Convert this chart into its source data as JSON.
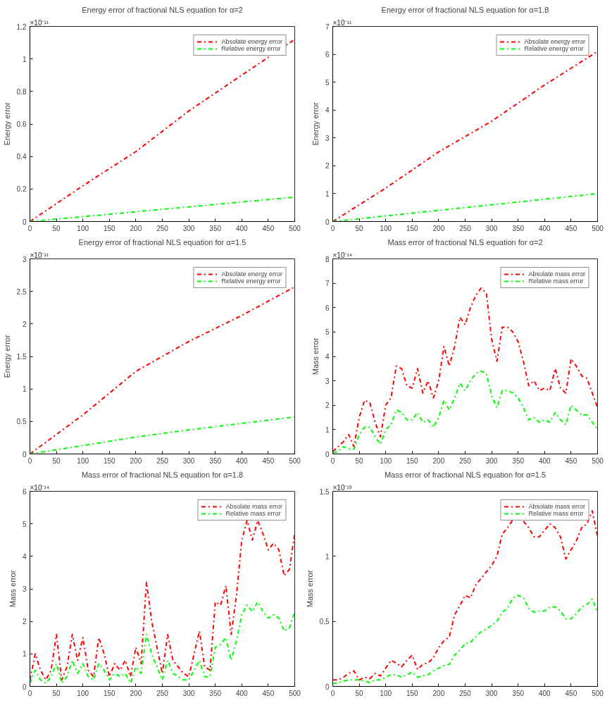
{
  "chart_data": [
    {
      "type": "line",
      "title": "Energy error of fractional NLS equation for α=2",
      "ylabel": "Energy error",
      "annotations": [
        "×10⁻¹¹"
      ],
      "x": [
        0,
        100,
        200,
        300,
        400,
        500
      ],
      "xlim": [
        0,
        500
      ],
      "xticks": [
        0,
        50,
        100,
        150,
        200,
        250,
        300,
        350,
        400,
        450,
        500
      ],
      "ylim": [
        0,
        1.2
      ],
      "yticks": [
        0,
        0.2,
        0.4,
        0.6,
        0.8,
        1,
        1.2
      ],
      "grid": false,
      "legend": "top right",
      "line_style": "dashdot",
      "marker": "none",
      "series": [
        {
          "name": "Absolate energy error",
          "color": "#ff0000",
          "values": [
            0,
            0.22,
            0.43,
            0.68,
            0.9,
            1.12
          ]
        },
        {
          "name": "Relative energy error",
          "color": "#00ff00",
          "values": [
            0,
            0.03,
            0.06,
            0.09,
            0.12,
            0.15
          ]
        }
      ]
    },
    {
      "type": "line",
      "title": "Energy error of fractional NLS equation for α=1.8",
      "ylabel": "Energy error",
      "annotations": [
        "×10⁻¹¹"
      ],
      "x": [
        0,
        100,
        200,
        300,
        400,
        500
      ],
      "xlim": [
        0,
        500
      ],
      "xticks": [
        0,
        50,
        100,
        150,
        200,
        250,
        300,
        350,
        400,
        450,
        500
      ],
      "ylim": [
        0,
        7
      ],
      "yticks": [
        0,
        1,
        2,
        3,
        4,
        5,
        6,
        7
      ],
      "grid": false,
      "legend": "top right",
      "line_style": "dashdot",
      "marker": "none",
      "series": [
        {
          "name": "Absolate energy error",
          "color": "#ff0000",
          "values": [
            0,
            1.2,
            2.5,
            3.6,
            4.9,
            6.1
          ]
        },
        {
          "name": "Relative energy error",
          "color": "#00ff00",
          "values": [
            0,
            0.2,
            0.4,
            0.6,
            0.8,
            1.0
          ]
        }
      ]
    },
    {
      "type": "line",
      "title": "Energy error of fractional NLS equation for α=1.5",
      "ylabel": "Energy error",
      "annotations": [
        "×10⁻¹¹"
      ],
      "x": [
        0,
        100,
        200,
        300,
        400,
        500
      ],
      "xlim": [
        0,
        500
      ],
      "xticks": [
        0,
        50,
        100,
        150,
        200,
        250,
        300,
        350,
        400,
        450,
        500
      ],
      "ylim": [
        0,
        3
      ],
      "yticks": [
        0,
        0.5,
        1,
        1.5,
        2,
        2.5,
        3
      ],
      "grid": false,
      "legend": "top right",
      "line_style": "dashdot",
      "marker": "none",
      "series": [
        {
          "name": "Absolate energy error",
          "color": "#ff0000",
          "values": [
            0,
            0.6,
            1.27,
            1.73,
            2.13,
            2.57
          ]
        },
        {
          "name": "Relative energy error",
          "color": "#00ff00",
          "values": [
            0,
            0.13,
            0.26,
            0.37,
            0.47,
            0.57
          ]
        }
      ]
    },
    {
      "type": "line",
      "title": "Mass error of fractional NLS equation for α=2",
      "ylabel": "Mass error",
      "annotations": [
        "×10⁻¹⁴"
      ],
      "x": [
        0,
        10,
        20,
        30,
        40,
        50,
        60,
        70,
        80,
        90,
        100,
        110,
        120,
        130,
        140,
        150,
        160,
        170,
        180,
        190,
        200,
        210,
        220,
        230,
        240,
        250,
        260,
        270,
        280,
        290,
        300,
        310,
        320,
        330,
        340,
        350,
        360,
        370,
        380,
        390,
        400,
        410,
        420,
        430,
        440,
        450,
        460,
        470,
        480,
        490,
        500
      ],
      "xlim": [
        0,
        500
      ],
      "xticks": [
        0,
        50,
        100,
        150,
        200,
        250,
        300,
        350,
        400,
        450,
        500
      ],
      "ylim": [
        0,
        8
      ],
      "yticks": [
        0,
        1,
        2,
        3,
        4,
        5,
        6,
        7,
        8
      ],
      "grid": false,
      "legend": "top right",
      "line_style": "dashdot",
      "marker": "none",
      "series": [
        {
          "name": "Absolate mass error",
          "color": "#ff0000",
          "values": [
            0.1,
            0.3,
            0.5,
            0.8,
            0.3,
            1.5,
            2.2,
            2.1,
            1.3,
            0.7,
            2.0,
            2.3,
            3.6,
            3.5,
            2.8,
            2.7,
            3.5,
            2.5,
            3.0,
            2.3,
            3.0,
            4.4,
            3.6,
            4.4,
            5.6,
            5.3,
            6.0,
            6.5,
            6.8,
            6.6,
            4.7,
            3.8,
            5.2,
            5.2,
            5.0,
            4.6,
            3.8,
            2.8,
            3.0,
            2.6,
            2.7,
            2.6,
            3.5,
            2.7,
            2.5,
            3.9,
            3.6,
            3.2,
            3.1,
            2.5,
            1.9
          ]
        },
        {
          "name": "Relative mass error",
          "color": "#00ff00",
          "values": [
            0.05,
            0.1,
            0.3,
            0.2,
            0.2,
            0.8,
            1.1,
            1.1,
            0.7,
            0.4,
            1.0,
            1.2,
            1.8,
            1.7,
            1.4,
            1.4,
            1.7,
            1.3,
            1.4,
            1.1,
            1.5,
            2.2,
            1.8,
            2.3,
            2.9,
            2.6,
            3.0,
            3.3,
            3.4,
            3.3,
            2.4,
            1.9,
            2.6,
            2.6,
            2.5,
            2.3,
            1.9,
            1.4,
            1.5,
            1.3,
            1.4,
            1.3,
            1.7,
            1.4,
            1.2,
            2.0,
            1.8,
            1.6,
            1.6,
            1.3,
            1.0
          ]
        }
      ]
    },
    {
      "type": "line",
      "title": "Mass error of fractional NLS equation for α=1.8",
      "ylabel": "Mass error",
      "annotations": [
        "×10⁻¹⁴"
      ],
      "x": [
        0,
        10,
        20,
        30,
        40,
        50,
        60,
        70,
        80,
        90,
        100,
        110,
        120,
        130,
        140,
        150,
        160,
        170,
        180,
        190,
        200,
        210,
        220,
        230,
        240,
        250,
        260,
        270,
        280,
        290,
        300,
        310,
        320,
        330,
        340,
        350,
        360,
        370,
        380,
        390,
        400,
        410,
        420,
        430,
        440,
        450,
        460,
        470,
        480,
        490,
        500
      ],
      "xlim": [
        0,
        500
      ],
      "xticks": [
        0,
        50,
        100,
        150,
        200,
        250,
        300,
        350,
        400,
        450,
        500
      ],
      "ylim": [
        0,
        6
      ],
      "yticks": [
        0,
        1,
        2,
        3,
        4,
        5,
        6
      ],
      "grid": false,
      "legend": "top right",
      "line_style": "dashdot",
      "marker": "none",
      "series": [
        {
          "name": "Absolate mass error",
          "color": "#ff0000",
          "values": [
            0.2,
            1.0,
            0.5,
            0.2,
            0.5,
            1.6,
            0.2,
            0.6,
            1.6,
            0.8,
            1.5,
            0.5,
            0.3,
            1.5,
            1.0,
            0.3,
            0.7,
            0.5,
            0.8,
            0.3,
            1.2,
            0.7,
            3.2,
            2.0,
            1.2,
            0.4,
            1.6,
            0.8,
            0.6,
            0.4,
            0.3,
            1.0,
            1.7,
            0.6,
            0.5,
            2.6,
            2.5,
            3.1,
            1.6,
            2.8,
            4.5,
            5.1,
            4.5,
            5.1,
            4.7,
            4.2,
            4.4,
            4.2,
            3.4,
            3.6,
            4.7
          ]
        },
        {
          "name": "Relative mass error",
          "color": "#00ff00",
          "values": [
            0.1,
            0.5,
            0.2,
            0.1,
            0.3,
            0.7,
            0.1,
            0.3,
            0.8,
            0.4,
            0.7,
            0.3,
            0.2,
            0.7,
            0.5,
            0.2,
            0.4,
            0.3,
            0.4,
            0.1,
            0.6,
            0.4,
            1.6,
            1.0,
            0.6,
            0.2,
            0.8,
            0.4,
            0.3,
            0.2,
            0.2,
            0.5,
            0.8,
            0.3,
            0.3,
            1.2,
            1.3,
            1.5,
            0.8,
            1.4,
            2.2,
            2.5,
            2.3,
            2.6,
            2.3,
            2.1,
            2.2,
            2.1,
            1.7,
            1.8,
            2.3
          ]
        }
      ]
    },
    {
      "type": "line",
      "title": "Mass error of fractional NLS equation for α=1.5",
      "ylabel": "Mass error",
      "annotations": [
        "×10⁻¹³"
      ],
      "x": [
        0,
        10,
        20,
        30,
        40,
        50,
        60,
        70,
        80,
        90,
        100,
        110,
        120,
        130,
        140,
        150,
        160,
        170,
        180,
        190,
        200,
        210,
        220,
        230,
        240,
        250,
        260,
        270,
        280,
        290,
        300,
        310,
        320,
        330,
        340,
        350,
        360,
        370,
        380,
        390,
        400,
        410,
        420,
        430,
        440,
        450,
        460,
        470,
        480,
        490,
        500
      ],
      "xlim": [
        0,
        500
      ],
      "xticks": [
        0,
        50,
        100,
        150,
        200,
        250,
        300,
        350,
        400,
        450,
        500
      ],
      "ylim": [
        0,
        1.5
      ],
      "yticks": [
        0,
        0.5,
        1,
        1.5
      ],
      "grid": false,
      "legend": "top right",
      "line_style": "dashdot",
      "marker": "none",
      "series": [
        {
          "name": "Absolate mass error",
          "color": "#ff0000",
          "values": [
            0.05,
            0.05,
            0.07,
            0.1,
            0.12,
            0.05,
            0.07,
            0.06,
            0.1,
            0.08,
            0.14,
            0.2,
            0.18,
            0.15,
            0.2,
            0.24,
            0.13,
            0.17,
            0.18,
            0.22,
            0.3,
            0.35,
            0.38,
            0.55,
            0.62,
            0.7,
            0.68,
            0.78,
            0.83,
            0.88,
            0.93,
            1.0,
            1.17,
            1.22,
            1.28,
            null,
            1.27,
            1.22,
            1.15,
            1.15,
            1.2,
            1.25,
            1.22,
            1.15,
            0.98,
            1.05,
            1.12,
            1.22,
            1.25,
            1.35,
            1.15
          ]
        },
        {
          "name": "Relative mass error",
          "color": "#00ff00",
          "values": [
            0.02,
            0.03,
            0.04,
            0.05,
            0.05,
            0.05,
            0.04,
            0.03,
            0.05,
            0.05,
            0.07,
            0.09,
            0.09,
            0.07,
            0.09,
            0.11,
            0.07,
            0.08,
            0.09,
            0.12,
            0.14,
            0.16,
            0.17,
            0.24,
            0.28,
            0.33,
            0.34,
            0.38,
            0.42,
            0.44,
            0.47,
            0.5,
            0.57,
            0.6,
            0.68,
            0.7,
            0.68,
            0.6,
            0.57,
            0.58,
            0.58,
            0.61,
            0.61,
            0.58,
            0.52,
            0.52,
            0.56,
            0.61,
            0.63,
            0.67,
            0.57
          ]
        }
      ]
    }
  ]
}
